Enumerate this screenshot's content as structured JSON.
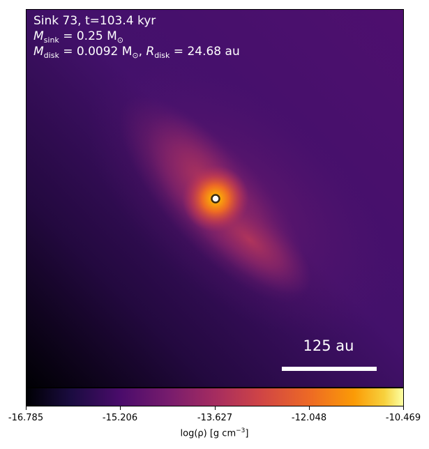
{
  "annotation": {
    "line1": "Sink 73, t=103.4 kyr",
    "msink_sym": "M",
    "msink_sub": "sink",
    "msink_value": " = 0.25 M",
    "msink_unit_sub": "⊙",
    "mdisk_sym": "M",
    "mdisk_sub": "disk",
    "mdisk_value": " = 0.0092 M",
    "mdisk_unit_sub": "⊙",
    "rdisk_sep": ", ",
    "rdisk_sym": "R",
    "rdisk_sub": "disk",
    "rdisk_value": " = 24.68 au"
  },
  "scale_bar": {
    "label": "125 au"
  },
  "colorbar": {
    "ticks": [
      "-16.785",
      "-15.206",
      "-13.627",
      "-12.048",
      "-10.469"
    ],
    "label_main": "log(ρ) [g cm",
    "label_exp": "−3",
    "label_end": "]",
    "colormap": "inferno",
    "range": [
      -16.785,
      -10.469
    ]
  }
}
